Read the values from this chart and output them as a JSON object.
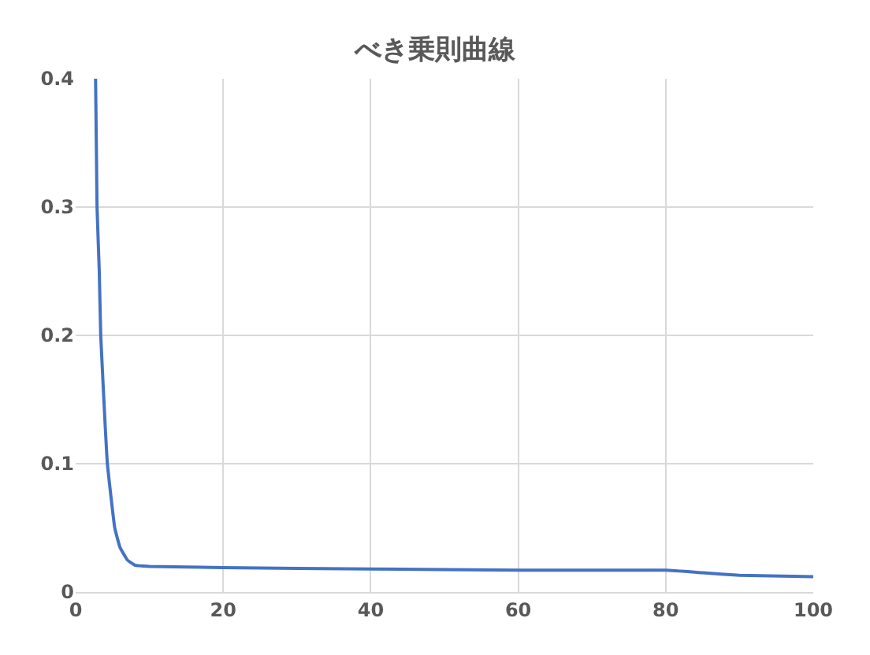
{
  "chart_data": {
    "type": "line",
    "title": "べき乗則曲線",
    "x": [
      2.7,
      2.9,
      3.2,
      3.4,
      4,
      4.3,
      5.3,
      6,
      7,
      8,
      10,
      20,
      40,
      60,
      80,
      85,
      90,
      100
    ],
    "series": [
      {
        "color": "#4472c4",
        "values": [
          0.4,
          0.3,
          0.25,
          0.2,
          0.13,
          0.1,
          0.05,
          0.035,
          0.025,
          0.021,
          0.02,
          0.019,
          0.018,
          0.017,
          0.017,
          0.015,
          0.013,
          0.012
        ]
      }
    ],
    "xlim": [
      0,
      100
    ],
    "xticks": [
      0,
      20,
      40,
      60,
      80,
      100
    ],
    "ylim": [
      0,
      0.4
    ],
    "yticks": [
      0,
      0.1,
      0.2,
      0.3,
      0.4
    ],
    "grid": true,
    "marker": "none",
    "line_style": "solid"
  }
}
